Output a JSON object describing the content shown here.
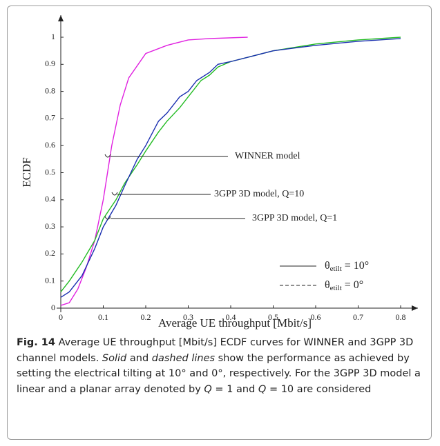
{
  "chart_data": {
    "type": "line",
    "xlabel": "Average UE throughput [Mbit/s]",
    "ylabel": "ECDF",
    "xlim": [
      0,
      0.8
    ],
    "ylim": [
      0,
      1
    ],
    "xticks": [
      0,
      0.1,
      0.2,
      0.3,
      0.4,
      0.5,
      0.6,
      0.7,
      0.8
    ],
    "yticks": [
      0,
      0.1,
      0.2,
      0.3,
      0.4,
      0.5,
      0.6,
      0.7,
      0.8,
      0.9,
      1
    ],
    "series": [
      {
        "name": "WINNER model",
        "color": "#e020e0",
        "x": [
          0,
          0.02,
          0.04,
          0.06,
          0.08,
          0.1,
          0.12,
          0.14,
          0.16,
          0.2,
          0.25,
          0.3,
          0.35,
          0.44
        ],
        "values": [
          0.01,
          0.02,
          0.07,
          0.15,
          0.25,
          0.4,
          0.6,
          0.75,
          0.85,
          0.94,
          0.97,
          0.99,
          0.995,
          1.0
        ]
      },
      {
        "name": "3GPP 3D model, Q=10",
        "color": "#22bb22",
        "x": [
          0,
          0.02,
          0.05,
          0.08,
          0.1,
          0.13,
          0.15,
          0.18,
          0.2,
          0.23,
          0.25,
          0.28,
          0.3,
          0.33,
          0.35,
          0.37,
          0.4,
          0.45,
          0.5,
          0.6,
          0.7,
          0.8
        ],
        "values": [
          0.06,
          0.1,
          0.17,
          0.25,
          0.33,
          0.4,
          0.46,
          0.53,
          0.58,
          0.65,
          0.69,
          0.74,
          0.78,
          0.84,
          0.86,
          0.89,
          0.91,
          0.93,
          0.95,
          0.975,
          0.99,
          1.0
        ]
      },
      {
        "name": "3GPP 3D model, Q=1",
        "color": "#1a2fb0",
        "x": [
          0,
          0.02,
          0.05,
          0.08,
          0.1,
          0.13,
          0.15,
          0.18,
          0.2,
          0.23,
          0.25,
          0.28,
          0.3,
          0.32,
          0.35,
          0.37,
          0.4,
          0.45,
          0.5,
          0.55,
          0.6,
          0.7,
          0.8
        ],
        "values": [
          0.04,
          0.06,
          0.12,
          0.22,
          0.3,
          0.38,
          0.45,
          0.55,
          0.6,
          0.69,
          0.72,
          0.78,
          0.8,
          0.84,
          0.87,
          0.9,
          0.91,
          0.93,
          0.95,
          0.96,
          0.97,
          0.985,
          0.995
        ]
      }
    ],
    "line_styles": [
      {
        "symbol": "θ",
        "subscript": "etilt",
        "text": " = 10°",
        "dashed": false
      },
      {
        "symbol": "θ",
        "subscript": "etilt",
        "text": " = 0°",
        "dashed": true
      }
    ],
    "caption": [
      {
        "text": "Fig. 14",
        "style": "bold"
      },
      {
        "text": " Average UE throughput [Mbit/s] ECDF curves for WINNER and 3GPP 3D channel models. ",
        "style": "normal"
      },
      {
        "text": "Solid",
        "style": "italic"
      },
      {
        "text": " and ",
        "style": "normal"
      },
      {
        "text": "dashed lines",
        "style": "italic"
      },
      {
        "text": " show the performance as achieved by setting the electrical tilting at 10° and 0°, respectively. For the 3GPP 3D model a linear and a planar array denoted by ",
        "style": "normal"
      },
      {
        "text": "Q",
        "style": "italic"
      },
      {
        "text": " = 1 and ",
        "style": "normal"
      },
      {
        "text": "Q",
        "style": "italic"
      },
      {
        "text": " = 10 are considered",
        "style": "normal"
      }
    ]
  }
}
